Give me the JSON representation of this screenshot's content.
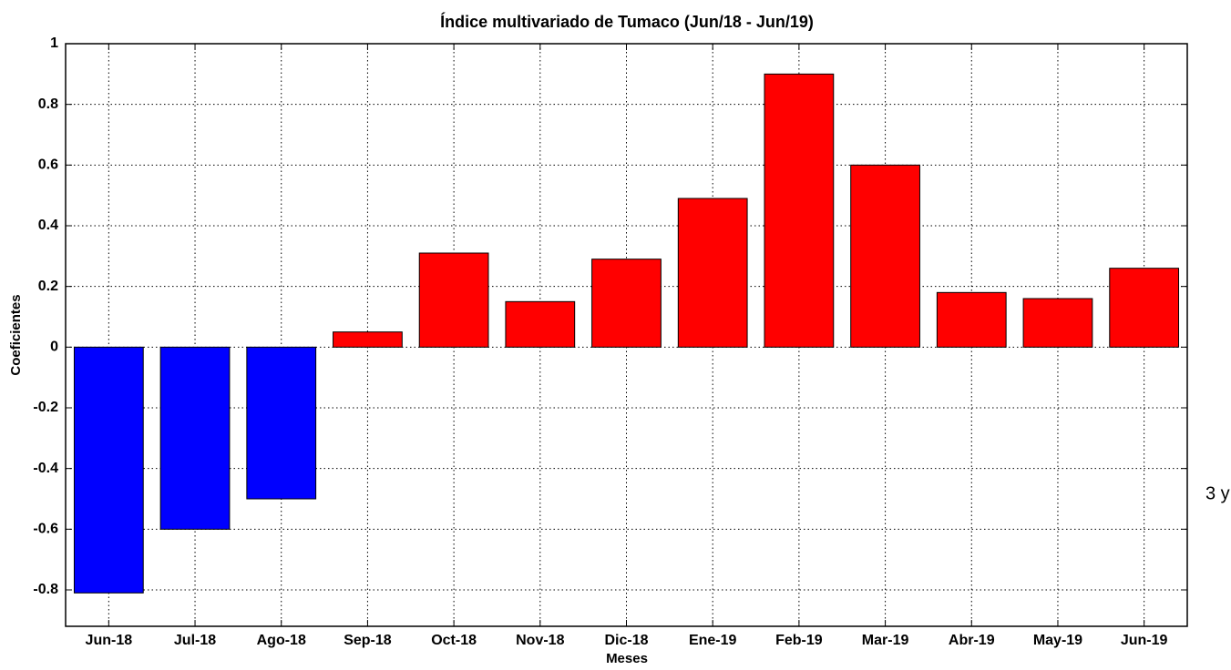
{
  "chart_data": {
    "type": "bar",
    "title": "Índice multivariado de Tumaco (Jun/18 - Jun/19)",
    "x_label": "Meses",
    "y_label": "Coeficientes",
    "categories": [
      "Jun-18",
      "Jul-18",
      "Ago-18",
      "Sep-18",
      "Oct-18",
      "Nov-18",
      "Dic-18",
      "Ene-19",
      "Feb-19",
      "Mar-19",
      "Abr-19",
      "May-19",
      "Jun-19"
    ],
    "values": [
      -0.81,
      -0.6,
      -0.5,
      0.05,
      0.31,
      0.15,
      0.29,
      0.49,
      0.9,
      0.6,
      0.18,
      0.16,
      0.26
    ],
    "colors": [
      "#0000ff",
      "#0000ff",
      "#0000ff",
      "#ff0000",
      "#ff0000",
      "#ff0000",
      "#ff0000",
      "#ff0000",
      "#ff0000",
      "#ff0000",
      "#ff0000",
      "#ff0000",
      "#ff0000"
    ],
    "ylim": [
      -0.92,
      1
    ],
    "yticks": [
      -0.8,
      -0.6,
      -0.4,
      -0.2,
      0,
      0.2,
      0.4,
      0.6,
      0.8,
      1
    ],
    "grid": true
  },
  "annotation": "3 y"
}
